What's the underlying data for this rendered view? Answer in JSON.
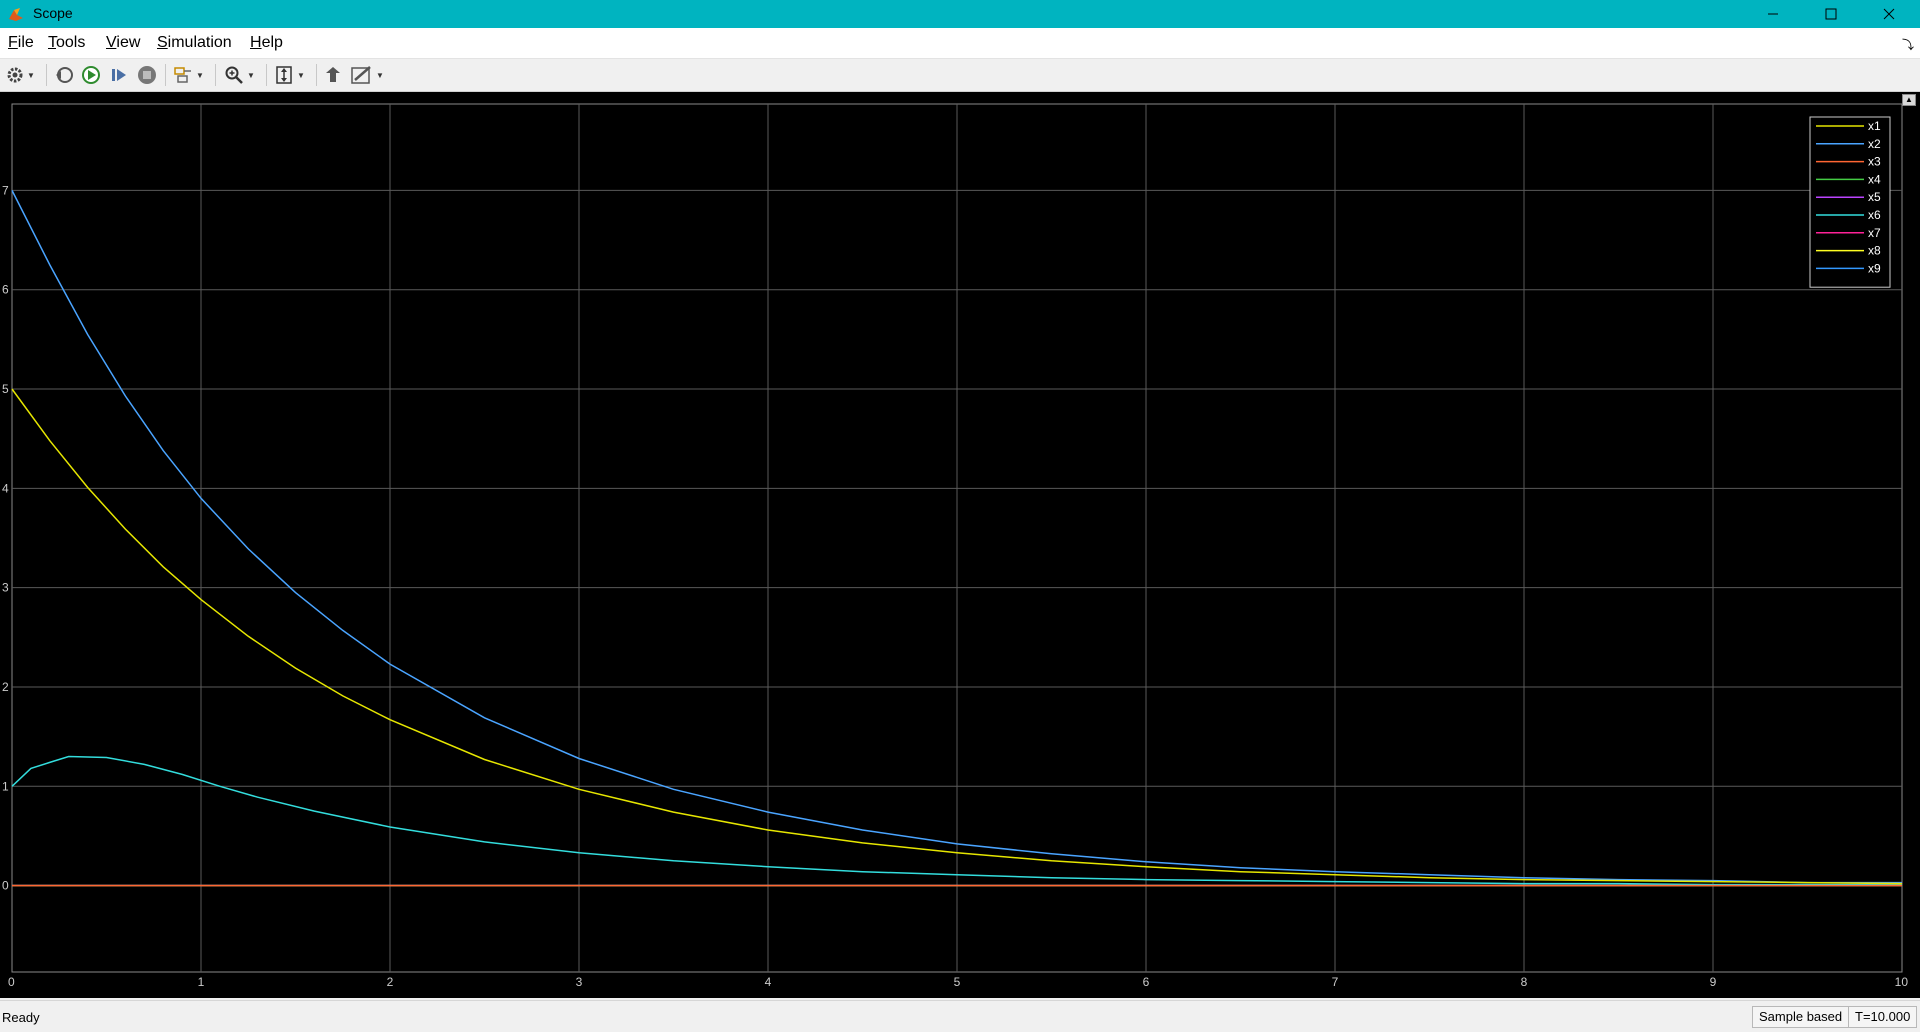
{
  "window": {
    "title": "Scope",
    "minimize_icon": "minimize-icon",
    "maximize_icon": "maximize-icon",
    "close_icon": "close-icon"
  },
  "menu": {
    "items": [
      {
        "first": "F",
        "rest": "ile"
      },
      {
        "first": "T",
        "rest": "ools"
      },
      {
        "first": "V",
        "rest": "iew"
      },
      {
        "first": "S",
        "rest": "imulation"
      },
      {
        "first": "H",
        "rest": "elp"
      }
    ]
  },
  "toolbar": {
    "icons": [
      "gear-icon",
      "step-back-icon",
      "run-icon",
      "step-forward-icon",
      "stop-icon",
      "triggers-icon",
      "zoom-icon",
      "scale-axes-icon",
      "highlight-block-icon",
      "edit-icon"
    ]
  },
  "status": {
    "text": "Ready",
    "sample_mode": "Sample based",
    "time": "T=10.000"
  },
  "colors": {
    "background": "#000000",
    "grid": "#5a5a5a",
    "axis_text": "#cccccc"
  },
  "chart_data": {
    "type": "line",
    "title": "",
    "xlabel": "",
    "ylabel": "",
    "xlim": [
      0,
      10
    ],
    "ylim": [
      -0.87,
      7.87
    ],
    "xticks": [
      "0",
      "1",
      "2",
      "3",
      "4",
      "5",
      "6",
      "7",
      "8",
      "9",
      "10"
    ],
    "yticks": [
      "0",
      "1",
      "2",
      "3",
      "4",
      "5",
      "6",
      "7"
    ],
    "grid": true,
    "legend_position": "top-right",
    "series": [
      {
        "name": "x1",
        "color": "#e6e600",
        "x": [
          0,
          0.2,
          0.4,
          0.6,
          0.8,
          1,
          1.25,
          1.5,
          1.75,
          2,
          2.5,
          3,
          3.5,
          4,
          4.5,
          5,
          5.5,
          6,
          6.5,
          7,
          7.5,
          8,
          8.5,
          9,
          9.5,
          10
        ],
        "y": [
          5,
          4.48,
          4.01,
          3.59,
          3.21,
          2.88,
          2.51,
          2.19,
          1.91,
          1.67,
          1.27,
          0.97,
          0.74,
          0.56,
          0.43,
          0.33,
          0.25,
          0.19,
          0.14,
          0.11,
          0.08,
          0.06,
          0.05,
          0.04,
          0.03,
          0.02
        ]
      },
      {
        "name": "x2",
        "color": "#4aa4ff",
        "x": [
          0,
          0.2,
          0.4,
          0.6,
          0.8,
          1,
          1.25,
          1.5,
          1.75,
          2,
          2.5,
          3,
          3.5,
          4,
          4.5,
          5,
          5.5,
          6,
          6.5,
          7,
          7.5,
          8,
          8.5,
          9,
          9.5,
          10
        ],
        "y": [
          7,
          6.25,
          5.55,
          4.93,
          4.38,
          3.9,
          3.39,
          2.95,
          2.57,
          2.23,
          1.69,
          1.28,
          0.97,
          0.74,
          0.56,
          0.42,
          0.32,
          0.24,
          0.18,
          0.14,
          0.11,
          0.08,
          0.06,
          0.05,
          0.03,
          0.03
        ]
      },
      {
        "name": "x3",
        "color": "#ff6633",
        "x": [
          0,
          10
        ],
        "y": [
          0,
          0
        ]
      },
      {
        "name": "x4",
        "color": "#44cc44",
        "x": [
          0,
          10
        ],
        "y": [
          0,
          0
        ]
      },
      {
        "name": "x5",
        "color": "#bb44ff",
        "x": [
          0,
          10
        ],
        "y": [
          0,
          0
        ]
      },
      {
        "name": "x6",
        "color": "#33dddd",
        "x": [
          0,
          0.1,
          0.2,
          0.3,
          0.5,
          0.7,
          0.9,
          1.1,
          1.3,
          1.6,
          2,
          2.5,
          3,
          3.5,
          4,
          4.5,
          5,
          5.5,
          6,
          6.5,
          7,
          7.5,
          8,
          8.5,
          9,
          9.5,
          10
        ],
        "y": [
          1,
          1.18,
          1.24,
          1.3,
          1.29,
          1.22,
          1.12,
          1.0,
          0.89,
          0.75,
          0.59,
          0.44,
          0.33,
          0.25,
          0.19,
          0.14,
          0.11,
          0.08,
          0.06,
          0.05,
          0.04,
          0.03,
          0.02,
          0.02,
          0.01,
          0.01,
          0.01
        ]
      },
      {
        "name": "x7",
        "color": "#ff2299",
        "x": [
          0,
          10
        ],
        "y": [
          0,
          0
        ]
      },
      {
        "name": "x8",
        "color": "#ffff22",
        "x": [
          0,
          10
        ],
        "y": [
          0,
          0
        ]
      },
      {
        "name": "x9",
        "color": "#3399ff",
        "x": [
          0,
          10
        ],
        "y": [
          0,
          0
        ]
      }
    ]
  }
}
